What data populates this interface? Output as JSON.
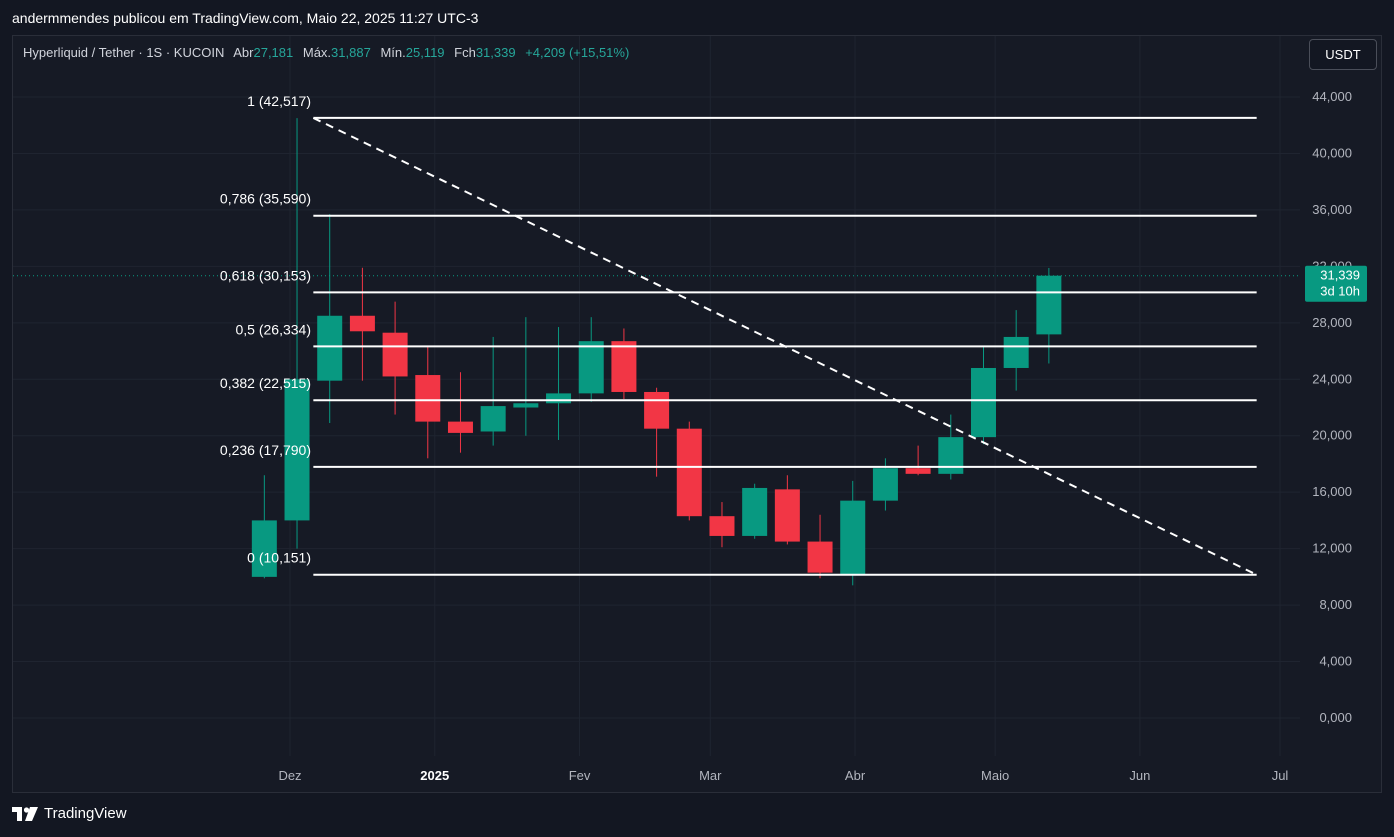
{
  "header": {
    "published_by": "andermmendes publicou em TradingView.com, Maio 22, 2025 11:27 UTC-3"
  },
  "legend": {
    "symbol": "Hyperliquid / Tether · 1S · KUCOIN",
    "open_label": "Abr",
    "open": "27,181",
    "high_label": "Máx.",
    "high": "31,887",
    "low_label": "Mín.",
    "low": "25,119",
    "close_label": "Fch",
    "close": "31,339",
    "change": "+4,209 (+15,51%)"
  },
  "currency_button": "USDT",
  "price_tag": {
    "price": "31,339",
    "countdown": "3d 10h"
  },
  "footer": {
    "brand": "TradingView"
  },
  "colors": {
    "up": "#089981",
    "down": "#f23645",
    "background": "#161a25",
    "grid": "#1f2430",
    "fib_line": "#ffffff"
  },
  "chart_data": {
    "type": "candlestick",
    "ylim": [
      -2000,
      46000
    ],
    "y_ticks": [
      "0,000",
      "4,000",
      "8,000",
      "12,000",
      "16,000",
      "20,000",
      "24,000",
      "28,000",
      "32,000",
      "36,000",
      "40,000",
      "44,000"
    ],
    "y_tick_values": [
      0,
      4000,
      8000,
      12000,
      16000,
      20000,
      24000,
      28000,
      32000,
      36000,
      40000,
      44000
    ],
    "x_ticks": [
      {
        "label": "Dez",
        "date": "2024-12-01",
        "bold": false
      },
      {
        "label": "2025",
        "date": "2025-01-01",
        "bold": true
      },
      {
        "label": "Fev",
        "date": "2025-02-01",
        "bold": false
      },
      {
        "label": "Mar",
        "date": "2025-03-01",
        "bold": false
      },
      {
        "label": "Abr",
        "date": "2025-04-01",
        "bold": false
      },
      {
        "label": "Maio",
        "date": "2025-05-01",
        "bold": false
      },
      {
        "label": "Jun",
        "date": "2025-06-01",
        "bold": false
      },
      {
        "label": "Jul",
        "date": "2025-07-01",
        "bold": false
      }
    ],
    "candles": [
      {
        "date": "2024-11-25",
        "o": 10000,
        "h": 17200,
        "l": 9900,
        "c": 14000
      },
      {
        "date": "2024-12-02",
        "o": 14000,
        "h": 42500,
        "l": 12000,
        "c": 24000
      },
      {
        "date": "2024-12-09",
        "o": 23900,
        "h": 35700,
        "l": 20900,
        "c": 28500
      },
      {
        "date": "2024-12-16",
        "o": 28500,
        "h": 31900,
        "l": 23900,
        "c": 27400
      },
      {
        "date": "2024-12-23",
        "o": 27300,
        "h": 29500,
        "l": 21500,
        "c": 24200
      },
      {
        "date": "2024-12-30",
        "o": 24300,
        "h": 26300,
        "l": 18400,
        "c": 21000
      },
      {
        "date": "2025-01-06",
        "o": 21000,
        "h": 24500,
        "l": 18800,
        "c": 20200
      },
      {
        "date": "2025-01-13",
        "o": 20300,
        "h": 27000,
        "l": 19300,
        "c": 22100
      },
      {
        "date": "2025-01-20",
        "o": 22000,
        "h": 28400,
        "l": 20000,
        "c": 22300
      },
      {
        "date": "2025-01-27",
        "o": 22300,
        "h": 27700,
        "l": 19700,
        "c": 23000
      },
      {
        "date": "2025-02-03",
        "o": 23000,
        "h": 28400,
        "l": 22400,
        "c": 26700
      },
      {
        "date": "2025-02-10",
        "o": 26700,
        "h": 27600,
        "l": 22600,
        "c": 23100
      },
      {
        "date": "2025-02-17",
        "o": 23100,
        "h": 23400,
        "l": 17100,
        "c": 20500
      },
      {
        "date": "2025-02-24",
        "o": 20500,
        "h": 21000,
        "l": 14000,
        "c": 14300
      },
      {
        "date": "2025-03-03",
        "o": 14300,
        "h": 15300,
        "l": 12100,
        "c": 12900
      },
      {
        "date": "2025-03-10",
        "o": 12900,
        "h": 16600,
        "l": 12700,
        "c": 16300
      },
      {
        "date": "2025-03-17",
        "o": 16200,
        "h": 17200,
        "l": 12300,
        "c": 12500
      },
      {
        "date": "2025-03-24",
        "o": 12500,
        "h": 14400,
        "l": 9900,
        "c": 10300
      },
      {
        "date": "2025-03-31",
        "o": 10100,
        "h": 16800,
        "l": 9400,
        "c": 15400
      },
      {
        "date": "2025-04-07",
        "o": 15400,
        "h": 18400,
        "l": 14700,
        "c": 17700
      },
      {
        "date": "2025-04-14",
        "o": 17700,
        "h": 19300,
        "l": 17200,
        "c": 17300
      },
      {
        "date": "2025-04-21",
        "o": 17300,
        "h": 21500,
        "l": 16900,
        "c": 19900
      },
      {
        "date": "2025-04-28",
        "o": 19900,
        "h": 26300,
        "l": 19400,
        "c": 24800
      },
      {
        "date": "2025-05-05",
        "o": 24800,
        "h": 28900,
        "l": 23200,
        "c": 27000
      },
      {
        "date": "2025-05-12",
        "o": 27181,
        "h": 31887,
        "l": 25119,
        "c": 31339
      }
    ],
    "fib_levels": [
      {
        "label": "1 (42,517)",
        "value": 42517
      },
      {
        "label": "0,786 (35,590)",
        "value": 35590
      },
      {
        "label": "0,618 (30,153)",
        "value": 30153
      },
      {
        "label": "0,5 (26,334)",
        "value": 26334
      },
      {
        "label": "0,382 (22,515)",
        "value": 22515
      },
      {
        "label": "0,236 (17,790)",
        "value": 17790
      },
      {
        "label": "0 (10,151)",
        "value": 10151
      }
    ],
    "fib_range": {
      "start_date": "2024-12-06",
      "end_date": "2025-06-26"
    },
    "trendline": {
      "start": {
        "date": "2024-12-06",
        "value": 42517
      },
      "end": {
        "date": "2025-06-26",
        "value": 10151
      }
    },
    "last_price": 31339
  }
}
